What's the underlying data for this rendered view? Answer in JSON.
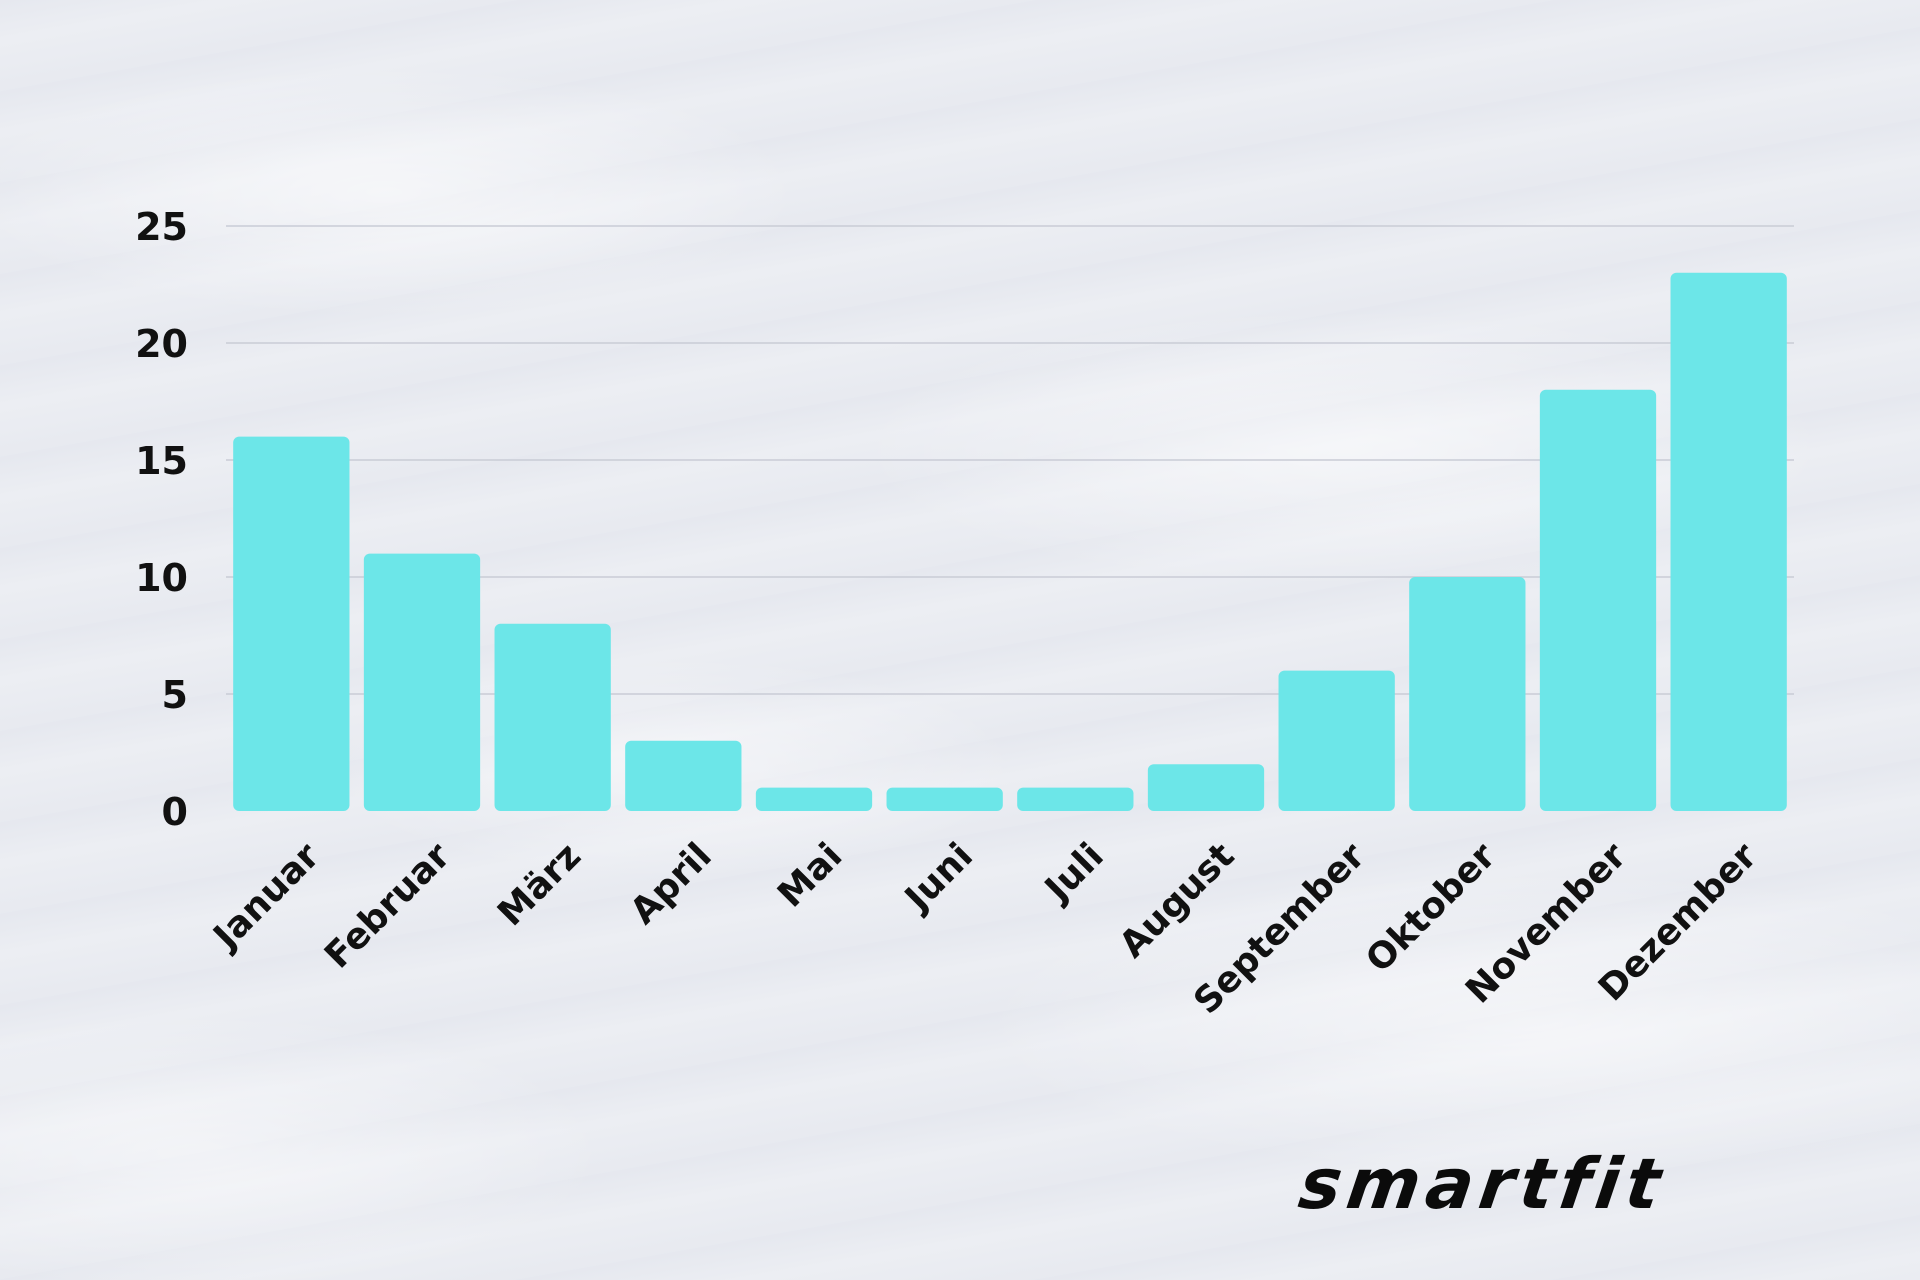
{
  "chart_data": {
    "type": "bar",
    "categories": [
      "Januar",
      "Februar",
      "März",
      "April",
      "Mai",
      "Juni",
      "Juli",
      "August",
      "September",
      "Oktober",
      "November",
      "Dezember"
    ],
    "values": [
      16,
      11,
      8,
      3,
      1,
      1,
      1,
      2,
      6,
      10,
      18,
      23
    ],
    "yticks": [
      "0",
      "5",
      "10",
      "15",
      "20",
      "25"
    ],
    "ylim": [
      0,
      25
    ],
    "grid": true,
    "bar_color": "#6ce6e8",
    "title": "",
    "xlabel": "",
    "ylabel": ""
  },
  "logo": {
    "text": "smartfit",
    "color": "#0b0b0b"
  }
}
